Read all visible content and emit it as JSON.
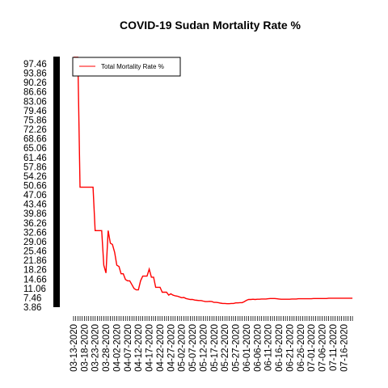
{
  "chart_data": {
    "type": "line",
    "title": "COVID-19 Sudan Mortality Rate %",
    "xlabel": "",
    "ylabel": "",
    "legend": {
      "entries": [
        "Total Mortality Rate %"
      ],
      "placement": "top-left"
    },
    "x_tick_labels": [
      "03-13-2020",
      "03-18-2020",
      "03-23-2020",
      "03-28-2020",
      "04-02-2020",
      "04-07-2020",
      "04-12-2020",
      "04-17-2020",
      "04-22-2020",
      "04-27-2020",
      "05-02-2020",
      "05-07-2020",
      "05-12-2020",
      "05-17-2020",
      "05-22-2020",
      "05-27-2020",
      "06-01-2020",
      "06-06-2020",
      "06-11-2020",
      "06-16-2020",
      "06-21-2020",
      "06-26-2020",
      "07-01-2020",
      "07-06-2020",
      "07-11-2020",
      "07-16-2020"
    ],
    "y_tick_labels": [
      "3.86",
      "7.46",
      "11.06",
      "14.66",
      "18.26",
      "21.86",
      "25.46",
      "29.06",
      "32.66",
      "36.26",
      "39.86",
      "43.46",
      "47.06",
      "50.66",
      "54.26",
      "57.86",
      "61.46",
      "65.06",
      "68.66",
      "72.26",
      "75.86",
      "79.46",
      "83.06",
      "86.66",
      "90.26",
      "93.86",
      "97.46"
    ],
    "ylim": [
      3.86,
      97.46
    ],
    "x_start": "03-13-2020",
    "x_end": "07-20-2020",
    "grid": false,
    "colors": {
      "series": "#ff0000",
      "axis": "#000000"
    },
    "series": [
      {
        "name": "Total Mortality Rate %",
        "values": [
          100,
          100,
          100,
          50,
          50,
          50,
          50,
          50,
          50,
          50,
          33.3,
          33.3,
          33.3,
          33.3,
          20,
          17,
          33.3,
          28.5,
          28,
          25,
          20,
          19.5,
          16.7,
          16.7,
          14.5,
          14,
          14,
          12.5,
          11,
          10.5,
          10.5,
          14,
          15.8,
          15.8,
          15.8,
          18.5,
          15.4,
          15.4,
          11.5,
          11.5,
          11.5,
          9.6,
          9.6,
          9.6,
          8.5,
          9,
          8.5,
          8.2,
          8.1,
          7.8,
          7.5,
          7.6,
          7.2,
          7.0,
          6.8,
          6.8,
          6.6,
          6.5,
          6.4,
          6.4,
          6.2,
          6.0,
          6.0,
          6.1,
          6.0,
          5.7,
          5.7,
          5.6,
          5.4,
          5.3,
          5.3,
          5.2,
          5.2,
          5.3,
          5.3,
          5.5,
          5.5,
          5.6,
          5.6,
          6.0,
          6.5,
          6.8,
          6.8,
          6.9,
          6.8,
          6.9,
          6.9,
          7.0,
          7.0,
          7.0,
          7.1,
          7.2,
          7.2,
          7.2,
          7.1,
          7.0,
          6.9,
          6.9,
          6.9,
          6.9,
          6.9,
          7.0,
          7.0,
          7.0,
          7.1,
          7.1,
          7.1,
          7.1,
          7.1,
          7.1,
          7.1,
          7.2,
          7.2,
          7.2,
          7.2,
          7.2,
          7.2,
          7.2,
          7.3,
          7.3,
          7.3,
          7.3,
          7.3,
          7.3,
          7.3,
          7.3,
          7.3,
          7.3,
          7.3,
          7.3
        ]
      }
    ]
  }
}
